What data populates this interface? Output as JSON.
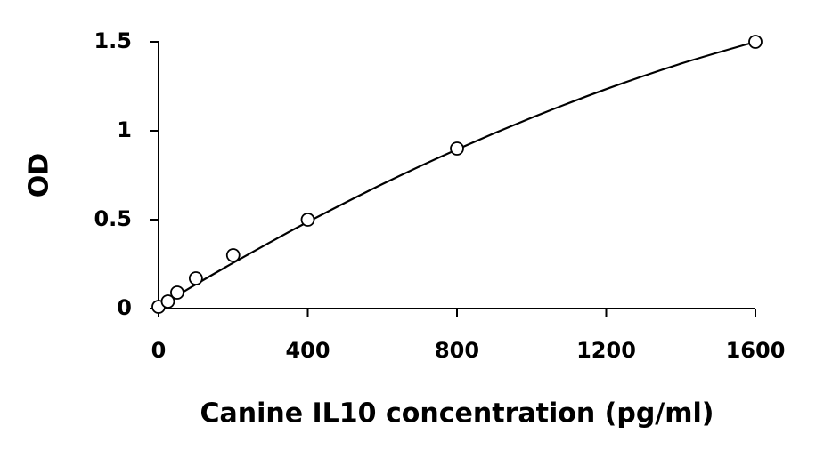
{
  "chart_data": {
    "type": "scatter",
    "x_label": "Canine IL10 concentration (pg/ml)",
    "y_label": "OD",
    "x": [
      0,
      25,
      50,
      100,
      200,
      400,
      800,
      1600
    ],
    "values": [
      0.01,
      0.04,
      0.09,
      0.17,
      0.3,
      0.5,
      0.9,
      1.5
    ],
    "color": "#000000",
    "fit": {
      "x": [
        0,
        100,
        200,
        300,
        400,
        600,
        800,
        1000,
        1200,
        1400,
        1600
      ],
      "values": [
        0.01,
        0.136,
        0.257,
        0.374,
        0.487,
        0.7,
        0.895,
        1.073,
        1.234,
        1.377,
        1.5
      ],
      "color": "#000000"
    },
    "xlim": [
      0,
      1600
    ],
    "ylim": [
      0,
      1.5
    ],
    "xticks": [
      0,
      400,
      800,
      1200,
      1600
    ],
    "yticks": [
      0,
      0.5,
      1,
      1.5
    ],
    "grid": false
  }
}
